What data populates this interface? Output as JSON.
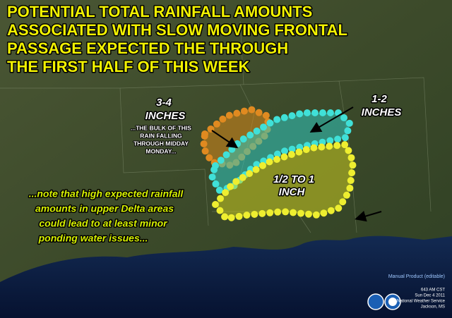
{
  "title": {
    "lines": [
      "POTENTIAL TOTAL RAINFALL AMOUNTS",
      "ASSOCIATED WITH SLOW MOVING FRONTAL",
      "PASSAGE EXPECTED THE THROUGH",
      "THE FIRST HALF OF THIS WEEK"
    ]
  },
  "zones": [
    {
      "label": [
        "3-4",
        "INCHES"
      ],
      "note": [
        "...THE BULK OF THIS",
        "RAIN FALLING",
        "THROUGH MIDDAY",
        "MONDAY..."
      ]
    },
    {
      "label": [
        "1-2",
        "INCHES"
      ]
    },
    {
      "label": [
        "1/2 TO 1",
        "INCH"
      ]
    }
  ],
  "note": {
    "lines": [
      "...note that high expected rainfall",
      "amounts in upper Delta areas",
      "could lead to at least minor",
      "ponding water issues..."
    ]
  },
  "footer": {
    "product": "Manual Product (editable)",
    "lines": [
      "643 AM CST",
      "Sun Dec 4 2011",
      "National Weather Service",
      "Jackson, MS"
    ]
  }
}
